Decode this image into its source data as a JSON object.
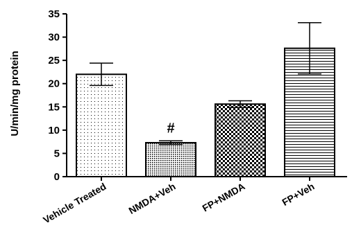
{
  "chart_data": {
    "type": "bar",
    "title": "",
    "xlabel": "",
    "ylabel": "U/min/mg protein",
    "ylim": [
      0,
      35
    ],
    "yticks": [
      0,
      5,
      10,
      15,
      20,
      25,
      30,
      35
    ],
    "grid": false,
    "categories": [
      "Vehicle Treated",
      "NMDA+Veh",
      "FP+NMDA",
      "FP+Veh"
    ],
    "values": [
      22,
      7.3,
      15.6,
      27.6
    ],
    "errors": [
      2.4,
      0.4,
      0.7,
      5.5
    ],
    "patterns": [
      "dots-sparse",
      "dots-dense",
      "checker",
      "horizontal-lines"
    ],
    "annotations": [
      {
        "category": "NMDA+Veh",
        "text": "#"
      }
    ]
  }
}
